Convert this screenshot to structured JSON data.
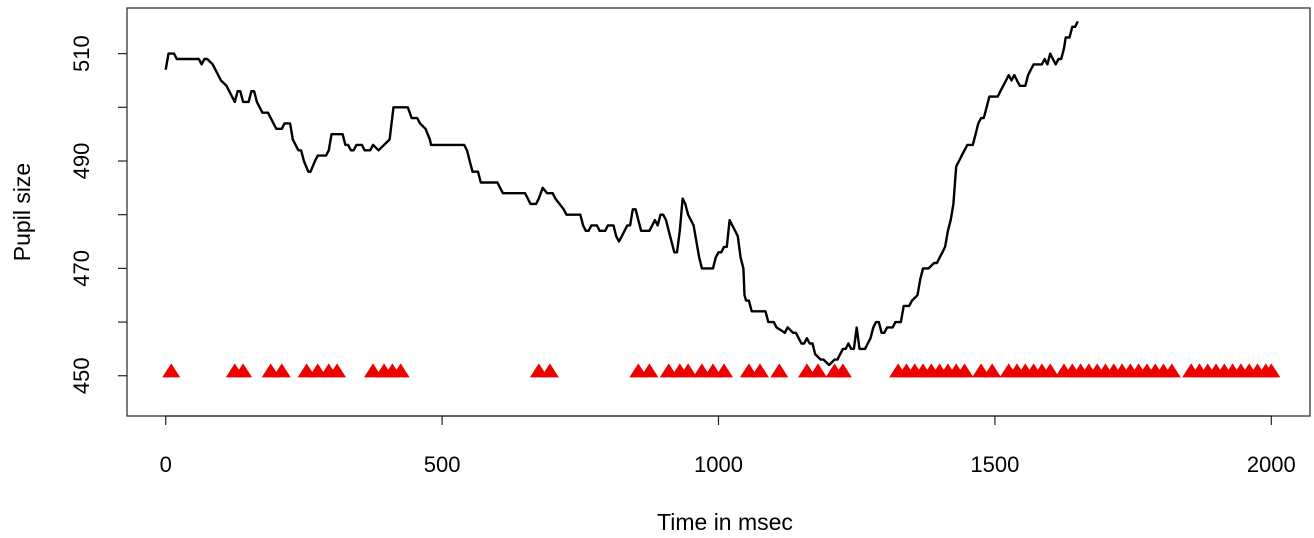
{
  "chart_data": {
    "type": "line",
    "title": "",
    "xlabel": "Time in msec",
    "ylabel": "Pupil size",
    "xlim": [
      -70,
      2070
    ],
    "ylim": [
      442.5,
      518.5
    ],
    "x_ticks": [
      0,
      500,
      1000,
      1500,
      2000
    ],
    "y_ticks": [
      450,
      460,
      470,
      480,
      490,
      500,
      510
    ],
    "y_tick_labels": [
      "450",
      "",
      "470",
      "",
      "490",
      "",
      "510"
    ],
    "grid": false,
    "series": [
      {
        "style": "line",
        "color": "#000000",
        "points": [
          [
            0,
            507
          ],
          [
            5,
            510
          ],
          [
            15,
            510
          ],
          [
            20,
            509
          ],
          [
            60,
            509
          ],
          [
            65,
            508
          ],
          [
            70,
            509
          ],
          [
            75,
            509
          ],
          [
            85,
            508
          ],
          [
            90,
            507
          ],
          [
            100,
            505
          ],
          [
            110,
            504
          ],
          [
            120,
            502
          ],
          [
            125,
            501
          ],
          [
            130,
            503
          ],
          [
            135,
            503
          ],
          [
            140,
            501
          ],
          [
            150,
            501
          ],
          [
            155,
            503
          ],
          [
            160,
            503
          ],
          [
            165,
            501
          ],
          [
            175,
            499
          ],
          [
            185,
            499
          ],
          [
            195,
            497
          ],
          [
            200,
            496
          ],
          [
            205,
            496
          ],
          [
            210,
            496
          ],
          [
            215,
            497
          ],
          [
            225,
            497
          ],
          [
            230,
            494
          ],
          [
            240,
            492
          ],
          [
            245,
            492
          ],
          [
            250,
            490
          ],
          [
            258,
            488
          ],
          [
            262,
            488
          ],
          [
            270,
            490
          ],
          [
            275,
            491
          ],
          [
            290,
            491
          ],
          [
            295,
            492
          ],
          [
            300,
            495
          ],
          [
            320,
            495
          ],
          [
            325,
            493
          ],
          [
            330,
            493
          ],
          [
            335,
            492
          ],
          [
            340,
            492
          ],
          [
            345,
            493
          ],
          [
            350,
            493
          ],
          [
            355,
            493
          ],
          [
            360,
            492
          ],
          [
            370,
            492
          ],
          [
            375,
            493
          ],
          [
            385,
            492
          ],
          [
            395,
            493
          ],
          [
            405,
            494
          ],
          [
            412,
            500
          ],
          [
            438,
            500
          ],
          [
            445,
            498
          ],
          [
            455,
            498
          ],
          [
            460,
            497
          ],
          [
            470,
            496
          ],
          [
            478,
            494
          ],
          [
            480,
            493
          ],
          [
            520,
            493
          ],
          [
            540,
            493
          ],
          [
            545,
            492
          ],
          [
            550,
            490
          ],
          [
            555,
            488
          ],
          [
            565,
            488
          ],
          [
            570,
            486
          ],
          [
            590,
            486
          ],
          [
            600,
            486
          ],
          [
            605,
            485
          ],
          [
            610,
            484
          ],
          [
            640,
            484
          ],
          [
            650,
            484
          ],
          [
            655,
            483
          ],
          [
            660,
            482
          ],
          [
            665,
            482
          ],
          [
            670,
            482
          ],
          [
            675,
            483
          ],
          [
            682,
            485
          ],
          [
            690,
            484
          ],
          [
            700,
            484
          ],
          [
            705,
            483
          ],
          [
            720,
            481
          ],
          [
            725,
            480
          ],
          [
            750,
            480
          ],
          [
            755,
            478
          ],
          [
            760,
            477
          ],
          [
            765,
            477
          ],
          [
            770,
            478
          ],
          [
            780,
            478
          ],
          [
            785,
            477
          ],
          [
            795,
            477
          ],
          [
            800,
            478
          ],
          [
            810,
            478
          ],
          [
            815,
            476
          ],
          [
            820,
            475
          ],
          [
            825,
            476
          ],
          [
            835,
            478
          ],
          [
            840,
            478
          ],
          [
            845,
            481
          ],
          [
            850,
            481
          ],
          [
            855,
            479
          ],
          [
            860,
            477
          ],
          [
            875,
            477
          ],
          [
            880,
            478
          ],
          [
            885,
            479
          ],
          [
            890,
            478
          ],
          [
            895,
            480
          ],
          [
            900,
            480
          ],
          [
            905,
            479
          ],
          [
            910,
            477
          ],
          [
            915,
            475
          ],
          [
            920,
            473
          ],
          [
            925,
            473
          ],
          [
            930,
            477
          ],
          [
            935,
            483
          ],
          [
            940,
            482
          ],
          [
            945,
            480
          ],
          [
            955,
            478
          ],
          [
            960,
            475
          ],
          [
            965,
            472
          ],
          [
            970,
            470
          ],
          [
            980,
            470
          ],
          [
            985,
            470
          ],
          [
            990,
            470
          ],
          [
            995,
            472
          ],
          [
            1000,
            473
          ],
          [
            1005,
            473
          ],
          [
            1010,
            474
          ],
          [
            1015,
            474
          ],
          [
            1020,
            479
          ],
          [
            1025,
            478
          ],
          [
            1030,
            477
          ],
          [
            1035,
            476
          ],
          [
            1040,
            472
          ],
          [
            1045,
            470
          ],
          [
            1047,
            465
          ],
          [
            1050,
            464
          ],
          [
            1055,
            464
          ],
          [
            1060,
            462
          ],
          [
            1070,
            462
          ],
          [
            1080,
            462
          ],
          [
            1085,
            462
          ],
          [
            1090,
            460
          ],
          [
            1100,
            460
          ],
          [
            1105,
            459
          ],
          [
            1120,
            458
          ],
          [
            1125,
            459
          ],
          [
            1135,
            458
          ],
          [
            1140,
            458
          ],
          [
            1145,
            457
          ],
          [
            1150,
            456
          ],
          [
            1155,
            456
          ],
          [
            1160,
            457
          ],
          [
            1165,
            456
          ],
          [
            1170,
            456
          ],
          [
            1175,
            454
          ],
          [
            1185,
            453
          ],
          [
            1190,
            453
          ],
          [
            1200,
            452
          ],
          [
            1210,
            453
          ],
          [
            1215,
            453
          ],
          [
            1220,
            454
          ],
          [
            1225,
            455
          ],
          [
            1230,
            455
          ],
          [
            1235,
            456
          ],
          [
            1240,
            455
          ],
          [
            1245,
            455
          ],
          [
            1250,
            459
          ],
          [
            1255,
            455
          ],
          [
            1260,
            455
          ],
          [
            1265,
            455
          ],
          [
            1270,
            456
          ],
          [
            1275,
            457
          ],
          [
            1280,
            459
          ],
          [
            1285,
            460
          ],
          [
            1290,
            460
          ],
          [
            1295,
            458
          ],
          [
            1300,
            458
          ],
          [
            1305,
            459
          ],
          [
            1310,
            459
          ],
          [
            1315,
            459
          ],
          [
            1320,
            460
          ],
          [
            1330,
            460
          ],
          [
            1335,
            463
          ],
          [
            1340,
            463
          ],
          [
            1345,
            463
          ],
          [
            1350,
            464
          ],
          [
            1360,
            465
          ],
          [
            1365,
            468
          ],
          [
            1370,
            470
          ],
          [
            1375,
            470
          ],
          [
            1380,
            470
          ],
          [
            1390,
            471
          ],
          [
            1395,
            471
          ],
          [
            1400,
            472
          ],
          [
            1405,
            473
          ],
          [
            1410,
            474
          ],
          [
            1415,
            477
          ],
          [
            1420,
            479
          ],
          [
            1425,
            482
          ],
          [
            1430,
            489
          ],
          [
            1435,
            490
          ],
          [
            1440,
            491
          ],
          [
            1445,
            492
          ],
          [
            1450,
            493
          ],
          [
            1460,
            493
          ],
          [
            1465,
            495
          ],
          [
            1470,
            497
          ],
          [
            1475,
            498
          ],
          [
            1480,
            498
          ],
          [
            1485,
            500
          ],
          [
            1490,
            502
          ],
          [
            1500,
            502
          ],
          [
            1505,
            502
          ],
          [
            1510,
            503
          ],
          [
            1515,
            504
          ],
          [
            1520,
            505
          ],
          [
            1525,
            506
          ],
          [
            1530,
            505
          ],
          [
            1535,
            506
          ],
          [
            1540,
            505
          ],
          [
            1545,
            504
          ],
          [
            1555,
            504
          ],
          [
            1560,
            506
          ],
          [
            1565,
            507
          ],
          [
            1570,
            508
          ],
          [
            1585,
            508
          ],
          [
            1590,
            509
          ],
          [
            1595,
            508
          ],
          [
            1600,
            510
          ],
          [
            1605,
            509
          ],
          [
            1610,
            508
          ],
          [
            1615,
            509
          ],
          [
            1620,
            509
          ],
          [
            1625,
            511
          ],
          [
            1628,
            513
          ],
          [
            1635,
            513
          ],
          [
            1640,
            515
          ],
          [
            1645,
            515
          ],
          [
            1650,
            516
          ]
        ]
      },
      {
        "style": "triangle-markers",
        "color": "#ee0000",
        "y": 451,
        "x": [
          10,
          125,
          140,
          190,
          210,
          255,
          275,
          295,
          310,
          375,
          395,
          410,
          425,
          675,
          695,
          855,
          875,
          910,
          930,
          945,
          970,
          990,
          1010,
          1055,
          1075,
          1110,
          1160,
          1180,
          1210,
          1225,
          1325,
          1340,
          1355,
          1370,
          1385,
          1400,
          1415,
          1430,
          1445,
          1475,
          1495,
          1525,
          1540,
          1555,
          1570,
          1585,
          1600,
          1625,
          1640,
          1655,
          1670,
          1685,
          1700,
          1715,
          1730,
          1745,
          1760,
          1775,
          1790,
          1805,
          1820,
          1855,
          1870,
          1885,
          1900,
          1915,
          1930,
          1945,
          1960,
          1975,
          1990,
          2000
        ]
      }
    ]
  }
}
